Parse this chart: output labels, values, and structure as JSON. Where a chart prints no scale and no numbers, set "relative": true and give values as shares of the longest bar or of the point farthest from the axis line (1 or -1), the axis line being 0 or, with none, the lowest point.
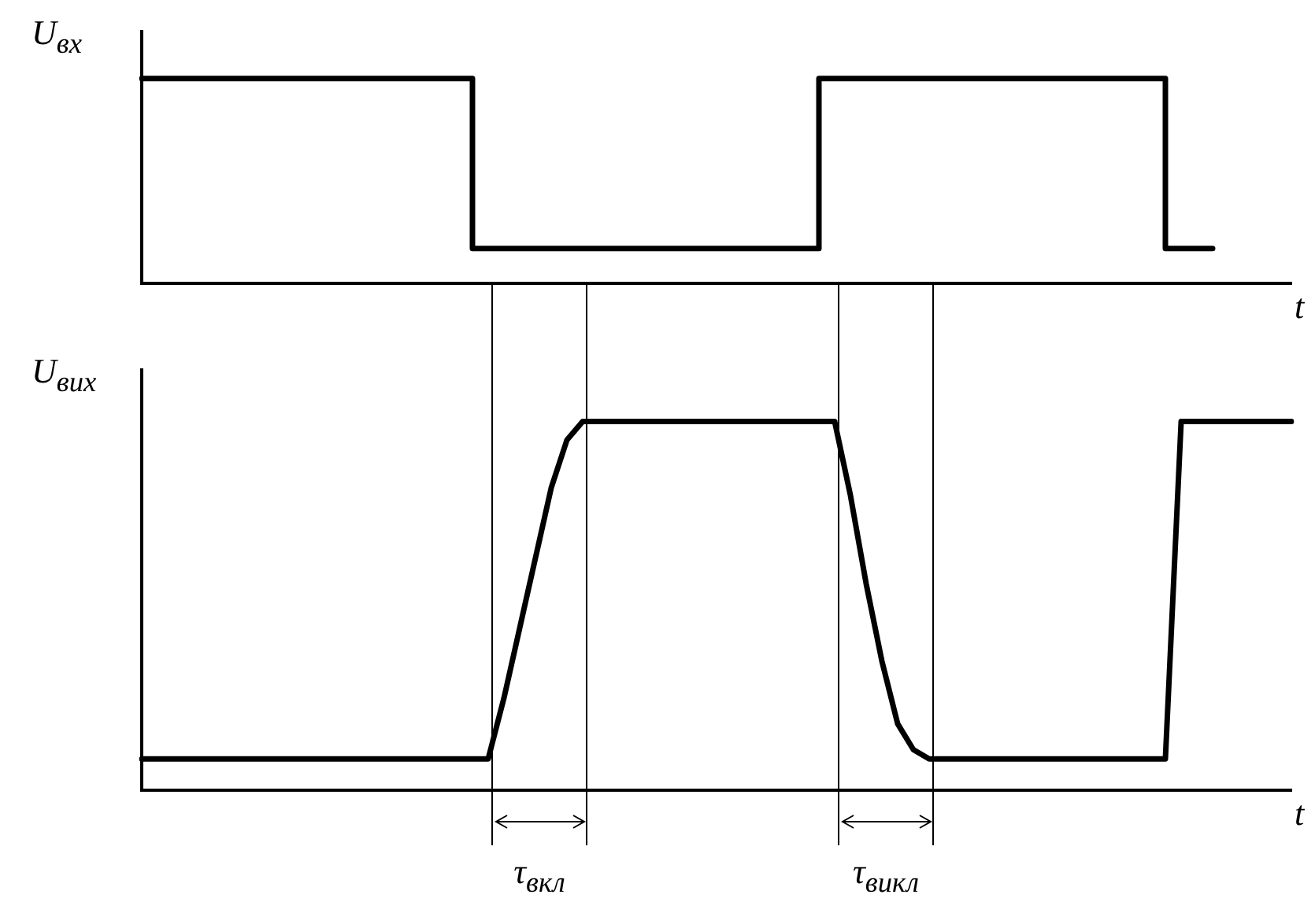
{
  "chart_data": [
    {
      "type": "step",
      "relative": true,
      "ylabel": "U$_{вх}$",
      "xlabel": "t",
      "categories": [
        null,
        null,
        null,
        null,
        null,
        null,
        null,
        null,
        null,
        null,
        null,
        null,
        null,
        null,
        null,
        null,
        null,
        null,
        null,
        null,
        null,
        null,
        null,
        null,
        null,
        null,
        null,
        null,
        null,
        null,
        null,
        null,
        null,
        null,
        null,
        null,
        null,
        null,
        null,
        null,
        null,
        null,
        null,
        null,
        null,
        null,
        null,
        null,
        null,
        null,
        null,
        null,
        null,
        null,
        null,
        null,
        null,
        null,
        null,
        null,
        null,
        null,
        null,
        null,
        null,
        null,
        null,
        null,
        null,
        null,
        null,
        null,
        null,
        null
      ],
      "series": [
        {
          "color": "#000000",
          "values": [
            1,
            1,
            1,
            1,
            1,
            1,
            1,
            1,
            1,
            1,
            1,
            1,
            1,
            1,
            1,
            1,
            1,
            1,
            1,
            1,
            1,
            1,
            0.17,
            0.17,
            0.17,
            0.17,
            0.17,
            0.17,
            0.17,
            0.17,
            0.17,
            0.17,
            0.17,
            0.17,
            0.17,
            0.17,
            0.17,
            0.17,
            0.17,
            0.17,
            0.17,
            0.17,
            0.17,
            0.17,
            1,
            1,
            1,
            1,
            1,
            1,
            1,
            1,
            1,
            1,
            1,
            1,
            1,
            1,
            1,
            1,
            1,
            1,
            1,
            1,
            1,
            1,
            0.17,
            0.17,
            0.17,
            null,
            null,
            null,
            null,
            null
          ]
        }
      ],
      "grid": false,
      "legend": false
    },
    {
      "type": "line",
      "relative": true,
      "ylabel": "U$_{вих}$",
      "xlabel": "t",
      "categories": [
        null,
        null,
        null,
        null,
        null,
        null,
        null,
        null,
        null,
        null,
        null,
        null,
        null,
        null,
        null,
        null,
        null,
        null,
        null,
        null,
        null,
        null,
        null,
        null,
        null,
        null,
        null,
        null,
        null,
        null,
        null,
        null,
        null,
        null,
        null,
        null,
        null,
        null,
        null,
        null,
        null,
        null,
        null,
        null,
        null,
        null,
        null,
        null,
        null,
        null,
        null,
        null,
        null,
        null,
        null,
        null,
        null,
        null,
        null,
        null,
        null,
        null,
        null,
        null,
        null,
        null,
        null,
        null,
        null,
        null,
        null,
        null,
        null,
        null
      ],
      "series": [
        {
          "color": "#000000",
          "values": [
            0.085,
            0.085,
            0.085,
            0.085,
            0.085,
            0.085,
            0.085,
            0.085,
            0.085,
            0.085,
            0.085,
            0.085,
            0.085,
            0.085,
            0.085,
            0.085,
            0.085,
            0.085,
            0.085,
            0.085,
            0.085,
            0.085,
            0.085,
            0.25,
            0.44,
            0.63,
            0.82,
            0.95,
            1,
            1,
            1,
            1,
            1,
            1,
            1,
            1,
            1,
            1,
            1,
            1,
            1,
            1,
            1,
            1,
            1,
            0.8,
            0.56,
            0.35,
            0.18,
            0.11,
            0.085,
            0.085,
            0.085,
            0.085,
            0.085,
            0.085,
            0.085,
            0.085,
            0.085,
            0.085,
            0.085,
            0.085,
            0.085,
            0.085,
            0.085,
            0.085,
            1,
            1,
            1,
            1,
            1,
            1,
            1,
            1
          ]
        }
      ],
      "annotations": [
        "τ$_{вкл}$",
        "τ$_{викл}$"
      ],
      "grid": false,
      "legend": false
    }
  ]
}
